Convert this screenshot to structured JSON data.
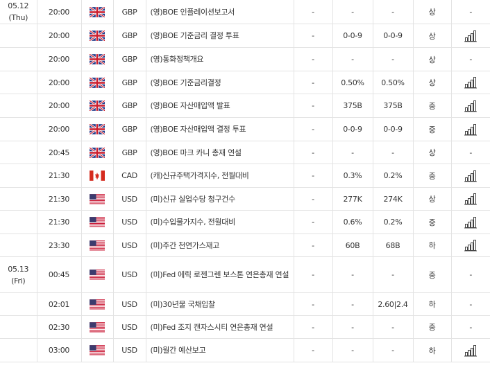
{
  "rows": [
    {
      "date": "05.12",
      "day": "(Thu)",
      "time": "20:00",
      "flag": "uk-flag-icon",
      "currency": "GBP",
      "event": "(영)BOE 인플레이션보고서",
      "actual": "-",
      "forecast": "-",
      "previous": "-",
      "importance": "상",
      "chart": "-"
    },
    {
      "date": "",
      "day": "",
      "time": "20:00",
      "flag": "uk-flag-icon",
      "currency": "GBP",
      "event": "(영)BOE 기준금리 결정 투표",
      "actual": "-",
      "forecast": "0-0-9",
      "previous": "0-0-9",
      "importance": "상",
      "chart": "bar-chart-icon"
    },
    {
      "date": "",
      "day": "",
      "time": "20:00",
      "flag": "uk-flag-icon",
      "currency": "GBP",
      "event": "(영)통화정책개요",
      "actual": "-",
      "forecast": "-",
      "previous": "-",
      "importance": "상",
      "chart": "-"
    },
    {
      "date": "",
      "day": "",
      "time": "20:00",
      "flag": "uk-flag-icon",
      "currency": "GBP",
      "event": "(영)BOE 기준금리결정",
      "actual": "-",
      "forecast": "0.50%",
      "previous": "0.50%",
      "importance": "상",
      "chart": "bar-chart-icon"
    },
    {
      "date": "",
      "day": "",
      "time": "20:00",
      "flag": "uk-flag-icon",
      "currency": "GBP",
      "event": "(영)BOE 자산매입액 발표",
      "actual": "-",
      "forecast": "375B",
      "previous": "375B",
      "importance": "중",
      "chart": "bar-chart-icon"
    },
    {
      "date": "",
      "day": "",
      "time": "20:00",
      "flag": "uk-flag-icon",
      "currency": "GBP",
      "event": "(영)BOE 자산매입액 결정 투표",
      "actual": "-",
      "forecast": "0-0-9",
      "previous": "0-0-9",
      "importance": "중",
      "chart": "bar-chart-icon"
    },
    {
      "date": "",
      "day": "",
      "time": "20:45",
      "flag": "uk-flag-icon",
      "currency": "GBP",
      "event": "(영)BOE 마크 카니 총재 연설",
      "actual": "-",
      "forecast": "-",
      "previous": "-",
      "importance": "상",
      "chart": "-"
    },
    {
      "date": "",
      "day": "",
      "time": "21:30",
      "flag": "canada-flag-icon",
      "currency": "CAD",
      "event": "(캐)신규주택가격지수, 전월대비",
      "actual": "-",
      "forecast": "0.3%",
      "previous": "0.2%",
      "importance": "중",
      "chart": "bar-chart-icon"
    },
    {
      "date": "",
      "day": "",
      "time": "21:30",
      "flag": "us-flag-icon",
      "currency": "USD",
      "event": "(미)신규 실업수당 청구건수",
      "actual": "-",
      "forecast": "277K",
      "previous": "274K",
      "importance": "상",
      "chart": "bar-chart-icon"
    },
    {
      "date": "",
      "day": "",
      "time": "21:30",
      "flag": "us-flag-icon",
      "currency": "USD",
      "event": "(미)수입물가지수, 전월대비",
      "actual": "-",
      "forecast": "0.6%",
      "previous": "0.2%",
      "importance": "중",
      "chart": "bar-chart-icon"
    },
    {
      "date": "",
      "day": "",
      "time": "23:30",
      "flag": "us-flag-icon",
      "currency": "USD",
      "event": "(미)주간 천연가스재고",
      "actual": "-",
      "forecast": "60B",
      "previous": "68B",
      "importance": "하",
      "chart": "bar-chart-icon"
    },
    {
      "date": "05.13",
      "day": "(Fri)",
      "time": "00:45",
      "flag": "us-flag-icon",
      "currency": "USD",
      "event": "(미)Fed 에릭 로젠그렌 보스톤 연은총재 연설",
      "actual": "-",
      "forecast": "-",
      "previous": "-",
      "importance": "중",
      "chart": "-"
    },
    {
      "date": "",
      "day": "",
      "time": "02:01",
      "flag": "us-flag-icon",
      "currency": "USD",
      "event": "(미)30년물 국채입찰",
      "actual": "-",
      "forecast": "-",
      "previous": "2.60|2.4",
      "importance": "하",
      "chart": "-"
    },
    {
      "date": "",
      "day": "",
      "time": "02:30",
      "flag": "us-flag-icon",
      "currency": "USD",
      "event": "(미)Fed 조지 캔자스시티 연은총재 연설",
      "actual": "-",
      "forecast": "-",
      "previous": "-",
      "importance": "중",
      "chart": "-"
    },
    {
      "date": "",
      "day": "",
      "time": "03:00",
      "flag": "us-flag-icon",
      "currency": "USD",
      "event": "(미)월간 예산보고",
      "actual": "-",
      "forecast": "-",
      "previous": "-",
      "importance": "하",
      "chart": "bar-chart-icon"
    }
  ],
  "colors": {
    "border": "#e3e3e3",
    "text": "#333333",
    "uk_blue": "#1f3a8a",
    "uk_red": "#cc1f2f",
    "ca_red": "#d52b1e",
    "us_red": "#c8102e",
    "us_blue": "#3c3b6e"
  }
}
